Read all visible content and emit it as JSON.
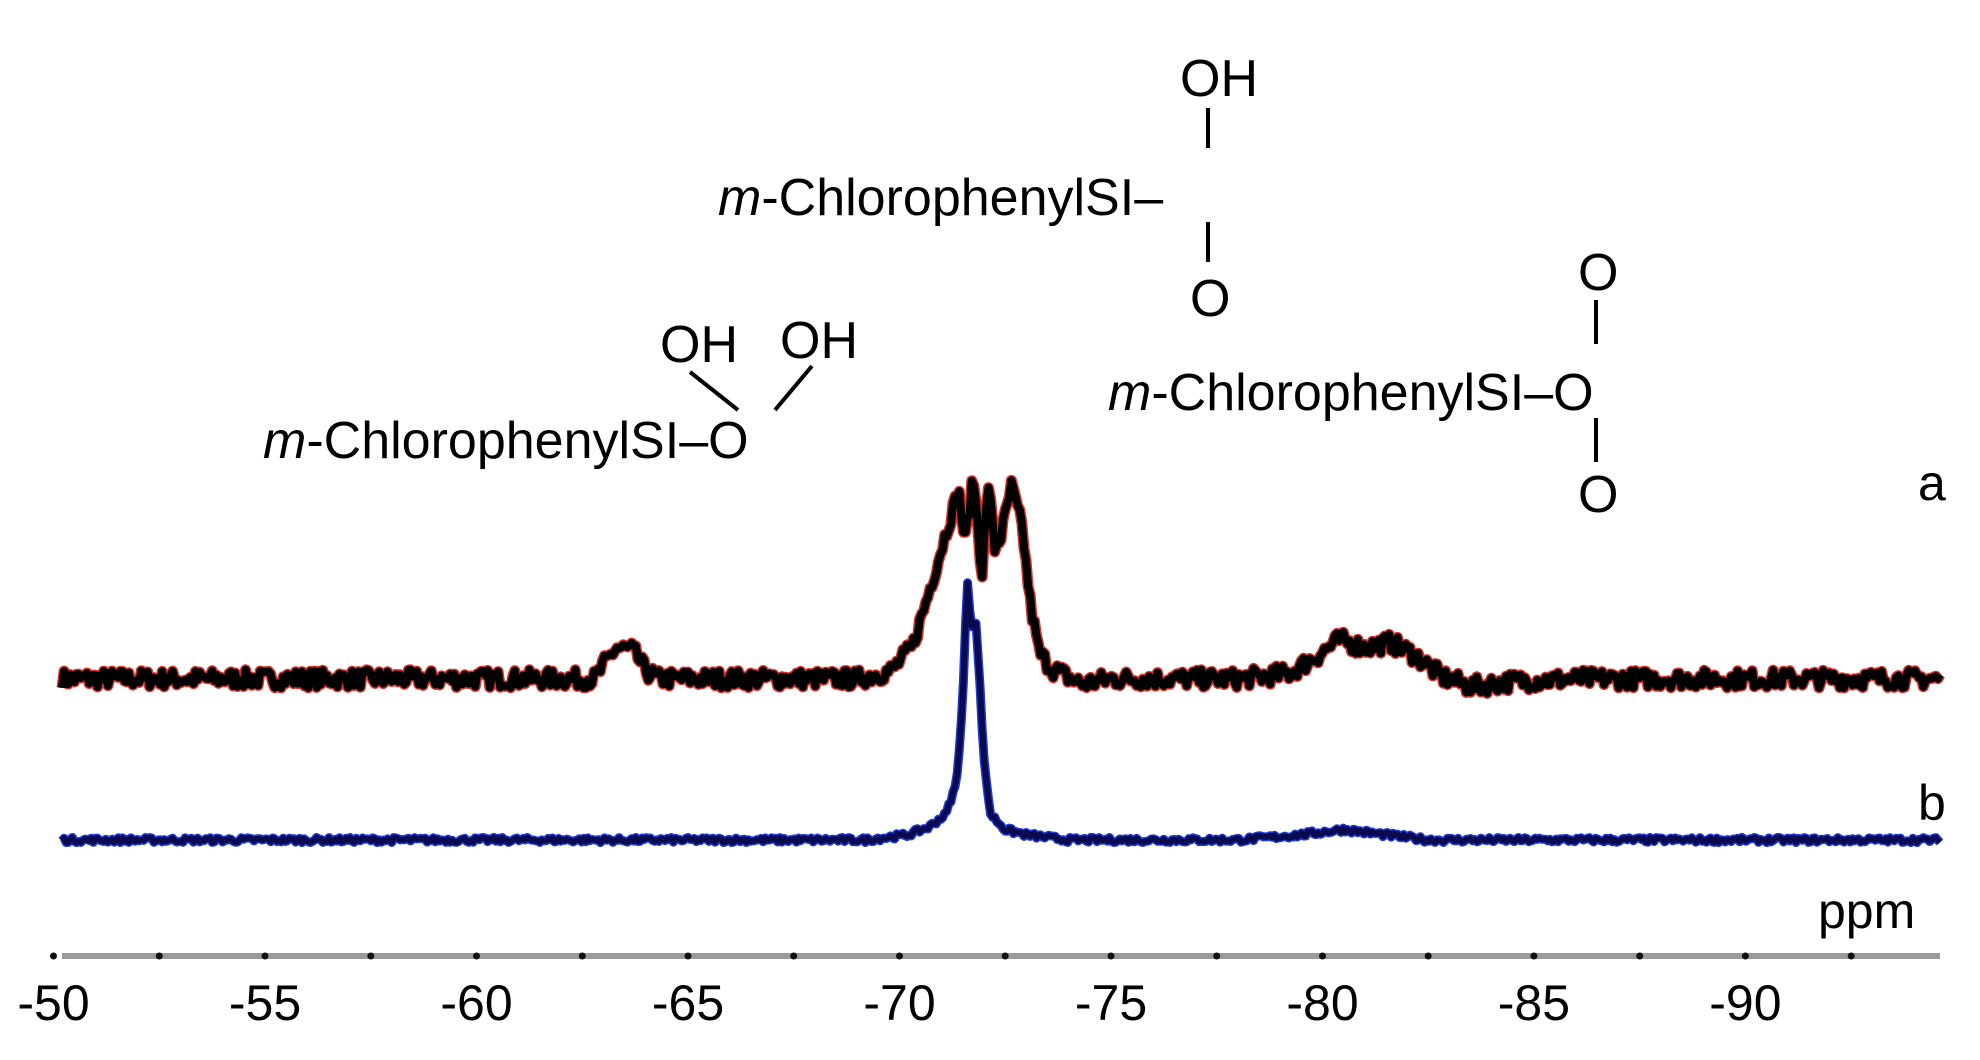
{
  "chart_data": {
    "type": "line",
    "xlabel": "ppm",
    "xlim": [
      -50.2,
      -94.6
    ],
    "ticks": [
      -50,
      -55,
      -60,
      -65,
      -70,
      -75,
      -80,
      -85,
      -90
    ],
    "tick_labels": [
      "-50",
      "-55",
      "-60",
      "-65",
      "-70",
      "-75",
      "-80",
      "-85",
      "-90"
    ],
    "grid": false,
    "series": [
      {
        "name": "a",
        "color": "#000000",
        "edge_color": "#d9342b",
        "offset": 0.62,
        "points": [
          [
            -50.2,
            0.0
          ],
          [
            -62.8,
            0.0
          ],
          [
            -63.0,
            0.05
          ],
          [
            -63.3,
            0.12
          ],
          [
            -63.7,
            0.11
          ],
          [
            -64.0,
            0.03
          ],
          [
            -64.3,
            0.0
          ],
          [
            -69.0,
            0.0
          ],
          [
            -69.8,
            0.03
          ],
          [
            -70.3,
            0.12
          ],
          [
            -70.6,
            0.28
          ],
          [
            -70.9,
            0.45
          ],
          [
            -71.2,
            0.62
          ],
          [
            -71.4,
            0.72
          ],
          [
            -71.55,
            0.52
          ],
          [
            -71.75,
            0.78
          ],
          [
            -71.95,
            0.4
          ],
          [
            -72.1,
            0.76
          ],
          [
            -72.25,
            0.5
          ],
          [
            -72.4,
            0.55
          ],
          [
            -72.65,
            0.74
          ],
          [
            -72.9,
            0.58
          ],
          [
            -73.1,
            0.28
          ],
          [
            -73.3,
            0.1
          ],
          [
            -73.6,
            0.04
          ],
          [
            -74.3,
            -0.02
          ],
          [
            -75.0,
            0.0
          ],
          [
            -76.5,
            0.0
          ],
          [
            -78.0,
            0.0
          ],
          [
            -79.2,
            0.02
          ],
          [
            -79.8,
            0.08
          ],
          [
            -80.4,
            0.15
          ],
          [
            -81.0,
            0.12
          ],
          [
            -81.6,
            0.14
          ],
          [
            -82.2,
            0.09
          ],
          [
            -82.8,
            0.01
          ],
          [
            -83.5,
            -0.03
          ],
          [
            -84.5,
            -0.01
          ],
          [
            -86.0,
            0.0
          ],
          [
            -94.6,
            0.0
          ]
        ]
      },
      {
        "name": "b",
        "color": "#0a0a50",
        "edge_color": "#1e3ad8",
        "offset": 0.0,
        "points": [
          [
            -50.2,
            0.0
          ],
          [
            -69.2,
            0.0
          ],
          [
            -70.2,
            0.02
          ],
          [
            -70.7,
            0.05
          ],
          [
            -71.1,
            0.1
          ],
          [
            -71.35,
            0.22
          ],
          [
            -71.5,
            0.55
          ],
          [
            -71.6,
            1.0
          ],
          [
            -71.7,
            0.82
          ],
          [
            -71.8,
            0.86
          ],
          [
            -71.9,
            0.6
          ],
          [
            -72.0,
            0.3
          ],
          [
            -72.15,
            0.1
          ],
          [
            -72.5,
            0.04
          ],
          [
            -73.0,
            0.02
          ],
          [
            -74.0,
            0.0
          ],
          [
            -78.0,
            0.0
          ],
          [
            -79.5,
            0.02
          ],
          [
            -80.5,
            0.04
          ],
          [
            -81.5,
            0.02
          ],
          [
            -82.5,
            0.0
          ],
          [
            -94.6,
            0.0
          ]
        ]
      }
    ],
    "annotations": {
      "left": {
        "prefix": "m",
        "name": "-ChlorophenylSI",
        "tail": "–O",
        "oh1": "OH",
        "oh2": "OH"
      },
      "middle": {
        "oh": "OH",
        "prefix": "m",
        "name": "-ChlorophenylSI",
        "tail": "–",
        "o_bottom": "O"
      },
      "right": {
        "o_top": "O",
        "prefix": "m",
        "name": "-ChlorophenylSI",
        "tail": "–O",
        "o_bottom": "O"
      }
    }
  }
}
